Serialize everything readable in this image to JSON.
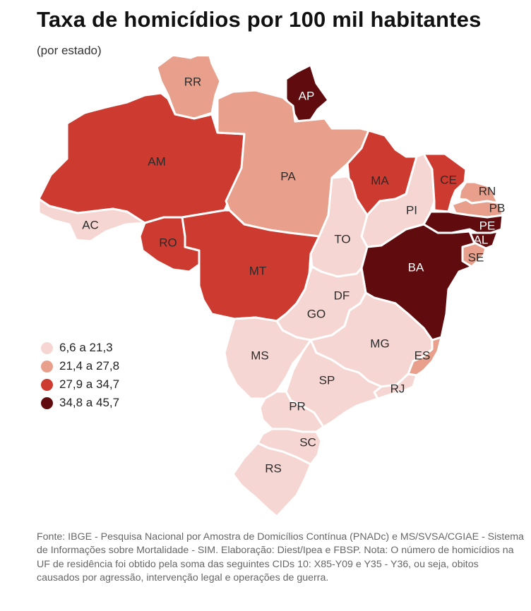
{
  "title": "Taxa de homicídios por 100 mil habitantes",
  "subtitle": "(por estado)",
  "legend": [
    {
      "label": "6,6 a 21,3",
      "color": "#f6d6d2"
    },
    {
      "label": "21,4 a 27,8",
      "color": "#e8a08c"
    },
    {
      "label": "27,9 a 34,7",
      "color": "#cc3a30"
    },
    {
      "label": "34,8 a 45,7",
      "color": "#600c0e"
    }
  ],
  "states": [
    {
      "code": "RR",
      "class": 1
    },
    {
      "code": "AP",
      "class": 3
    },
    {
      "code": "AM",
      "class": 2
    },
    {
      "code": "PA",
      "class": 1
    },
    {
      "code": "AC",
      "class": 0
    },
    {
      "code": "RO",
      "class": 2
    },
    {
      "code": "MT",
      "class": 2
    },
    {
      "code": "MA",
      "class": 2
    },
    {
      "code": "PI",
      "class": 0
    },
    {
      "code": "CE",
      "class": 2
    },
    {
      "code": "RN",
      "class": 1
    },
    {
      "code": "PB",
      "class": 1
    },
    {
      "code": "PE",
      "class": 3
    },
    {
      "code": "AL",
      "class": 3
    },
    {
      "code": "SE",
      "class": 1
    },
    {
      "code": "BA",
      "class": 3
    },
    {
      "code": "TO",
      "class": 0
    },
    {
      "code": "DF",
      "class": 0
    },
    {
      "code": "GO",
      "class": 0
    },
    {
      "code": "MS",
      "class": 0
    },
    {
      "code": "MG",
      "class": 0
    },
    {
      "code": "ES",
      "class": 1
    },
    {
      "code": "RJ",
      "class": 0
    },
    {
      "code": "SP",
      "class": 0
    },
    {
      "code": "PR",
      "class": 0
    },
    {
      "code": "SC",
      "class": 0
    },
    {
      "code": "RS",
      "class": 0
    }
  ],
  "source": "Fonte: IBGE - Pesquisa Nacional por Amostra de Domicílios Contínua (PNADc) e MS/SVSA/CGIAE - Sistema de Informações sobre Mortalidade - SIM. Elaboração: Diest/Ipea e FBSP. Nota: O número de homicídios na UF de residência foi obtido pela soma das seguintes CIDs 10: X85-Y09 e Y35 - Y36, ou seja, obitos causados por agressão, intervenção legal e operações de guerra."
}
